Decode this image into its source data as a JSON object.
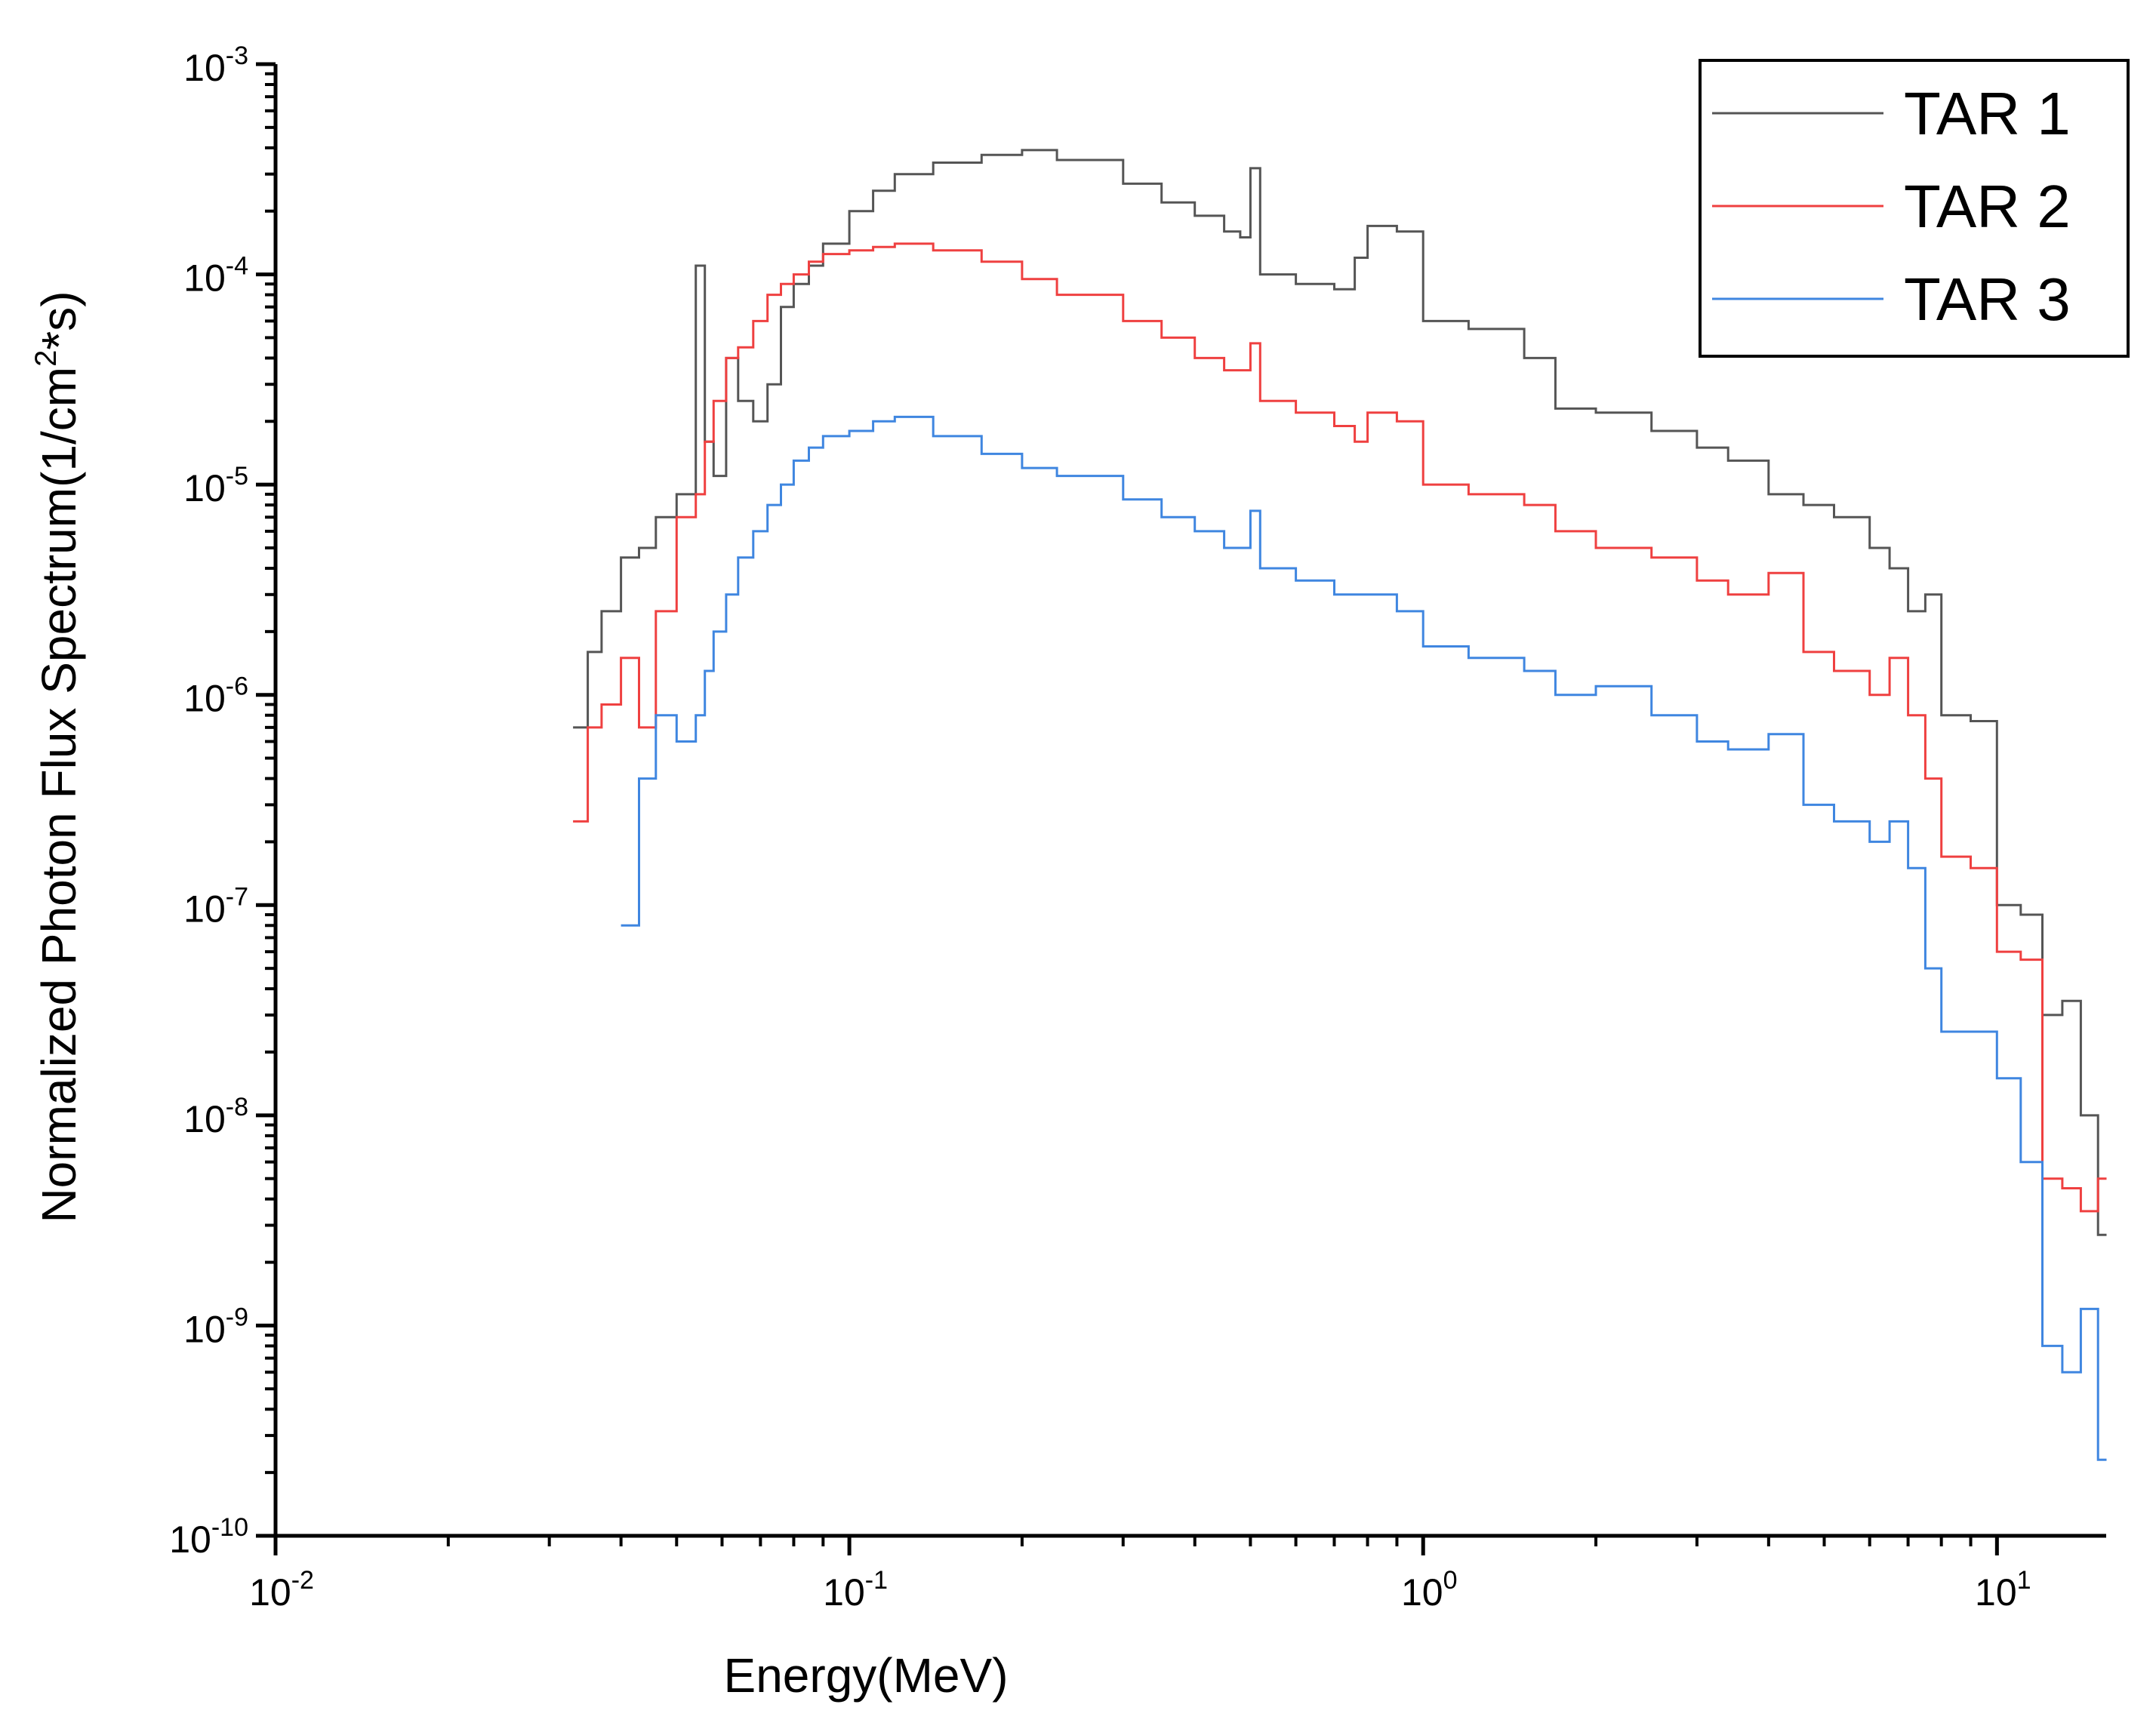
{
  "chart_data": {
    "type": "line",
    "style": "step",
    "title": "",
    "xlabel": "Energy(MeV)",
    "ylabel": "Normalized Photon Flux Spectrum(1/cm²*s)",
    "ylabel_parts": {
      "pre": "Normalized Photon Flux Spectrum(1/cm",
      "sup": "2",
      "post": "*s)"
    },
    "xscale": "log",
    "yscale": "log",
    "xlim": [
      0.01,
      15.5
    ],
    "ylim": [
      1e-10,
      0.001
    ],
    "grid": false,
    "legend_position": "top-right",
    "x_tick_labels": [
      {
        "value": 0.01,
        "base": "10",
        "exp": "-2"
      },
      {
        "value": 0.1,
        "base": "10",
        "exp": "-1"
      },
      {
        "value": 1,
        "base": "10",
        "exp": "0"
      },
      {
        "value": 10,
        "base": "10",
        "exp": "1"
      }
    ],
    "y_tick_labels": [
      {
        "value": 1e-10,
        "base": "10",
        "exp": "-10"
      },
      {
        "value": 1e-09,
        "base": "10",
        "exp": "-9"
      },
      {
        "value": 1e-08,
        "base": "10",
        "exp": "-8"
      },
      {
        "value": 1e-07,
        "base": "10",
        "exp": "-7"
      },
      {
        "value": 1e-06,
        "base": "10",
        "exp": "-6"
      },
      {
        "value": 1e-05,
        "base": "10",
        "exp": "-5"
      },
      {
        "value": 0.0001,
        "base": "10",
        "exp": "-4"
      },
      {
        "value": 0.001,
        "base": "10",
        "exp": "-3"
      }
    ],
    "series": [
      {
        "name": "TAR 1",
        "color": "#555555",
        "x": [
          0.033,
          0.035,
          0.037,
          0.04,
          0.043,
          0.046,
          0.05,
          0.054,
          0.056,
          0.058,
          0.061,
          0.064,
          0.068,
          0.072,
          0.076,
          0.08,
          0.085,
          0.09,
          0.1,
          0.11,
          0.12,
          0.14,
          0.17,
          0.2,
          0.23,
          0.3,
          0.35,
          0.4,
          0.45,
          0.48,
          0.5,
          0.52,
          0.6,
          0.7,
          0.76,
          0.8,
          0.9,
          1.0,
          1.2,
          1.5,
          1.7,
          2.0,
          2.5,
          3.0,
          3.4,
          4.0,
          4.6,
          5.2,
          6.0,
          6.5,
          7.0,
          7.5,
          8.0,
          9.0,
          10.0,
          11.0,
          12.0,
          13.0,
          14.0,
          15.0
        ],
        "values": [
          7e-07,
          1.6e-06,
          2.5e-06,
          4.5e-06,
          5e-06,
          7e-06,
          9e-06,
          0.00011,
          1.6e-05,
          1.1e-05,
          4e-05,
          2.5e-05,
          2e-05,
          3e-05,
          7e-05,
          9e-05,
          0.00011,
          0.00014,
          0.0002,
          0.00025,
          0.0003,
          0.00034,
          0.00037,
          0.00039,
          0.00035,
          0.00027,
          0.00022,
          0.00019,
          0.00016,
          0.00015,
          0.00032,
          0.0001,
          9e-05,
          8.5e-05,
          0.00012,
          0.00017,
          0.00016,
          6e-05,
          5.5e-05,
          4e-05,
          2.3e-05,
          2.2e-05,
          1.8e-05,
          1.5e-05,
          1.3e-05,
          9e-06,
          8e-06,
          7e-06,
          5e-06,
          4e-06,
          2.5e-06,
          3e-06,
          8e-07,
          7.5e-07,
          1e-07,
          9e-08,
          3e-08,
          3.5e-08,
          1e-08,
          2.7e-09
        ]
      },
      {
        "name": "TAR 2",
        "color": "#ef4040",
        "x": [
          0.033,
          0.035,
          0.037,
          0.04,
          0.043,
          0.046,
          0.05,
          0.054,
          0.056,
          0.058,
          0.061,
          0.064,
          0.068,
          0.072,
          0.076,
          0.08,
          0.085,
          0.09,
          0.1,
          0.11,
          0.12,
          0.14,
          0.17,
          0.2,
          0.23,
          0.3,
          0.35,
          0.4,
          0.45,
          0.48,
          0.5,
          0.52,
          0.6,
          0.7,
          0.76,
          0.8,
          0.9,
          1.0,
          1.2,
          1.5,
          1.7,
          2.0,
          2.5,
          3.0,
          3.4,
          4.0,
          4.6,
          5.2,
          6.0,
          6.5,
          7.0,
          7.5,
          8.0,
          9.0,
          10.0,
          11.0,
          12.0,
          13.0,
          14.0,
          15.0
        ],
        "values": [
          2.5e-07,
          7e-07,
          9e-07,
          1.5e-06,
          7e-07,
          2.5e-06,
          7e-06,
          9e-06,
          1.6e-05,
          2.5e-05,
          4e-05,
          4.5e-05,
          6e-05,
          8e-05,
          9e-05,
          0.0001,
          0.000115,
          0.000125,
          0.00013,
          0.000135,
          0.00014,
          0.00013,
          0.000115,
          9.5e-05,
          8e-05,
          6e-05,
          5e-05,
          4e-05,
          3.5e-05,
          3.5e-05,
          4.7e-05,
          2.5e-05,
          2.2e-05,
          1.9e-05,
          1.6e-05,
          2.2e-05,
          2e-05,
          1e-05,
          9e-06,
          8e-06,
          6e-06,
          5e-06,
          4.5e-06,
          3.5e-06,
          3e-06,
          3.8e-06,
          1.6e-06,
          1.3e-06,
          1e-06,
          1.5e-06,
          8e-07,
          4e-07,
          1.7e-07,
          1.5e-07,
          6e-08,
          5.5e-08,
          5e-09,
          4.5e-09,
          3.5e-09,
          5e-09
        ]
      },
      {
        "name": "TAR 3",
        "color": "#3f86e0",
        "x": [
          0.04,
          0.043,
          0.046,
          0.05,
          0.054,
          0.056,
          0.058,
          0.061,
          0.064,
          0.068,
          0.072,
          0.076,
          0.08,
          0.085,
          0.09,
          0.1,
          0.11,
          0.12,
          0.14,
          0.17,
          0.2,
          0.23,
          0.3,
          0.35,
          0.4,
          0.45,
          0.48,
          0.5,
          0.52,
          0.6,
          0.7,
          0.76,
          0.8,
          0.9,
          1.0,
          1.2,
          1.5,
          1.7,
          2.0,
          2.5,
          3.0,
          3.4,
          4.0,
          4.6,
          5.2,
          6.0,
          6.5,
          7.0,
          7.5,
          8.0,
          9.0,
          10.0,
          11.0,
          12.0,
          13.0,
          14.0,
          15.0
        ],
        "values": [
          8e-08,
          4e-07,
          8e-07,
          6e-07,
          8e-07,
          1.3e-06,
          2e-06,
          3e-06,
          4.5e-06,
          6e-06,
          8e-06,
          1e-05,
          1.3e-05,
          1.5e-05,
          1.7e-05,
          1.8e-05,
          2e-05,
          2.1e-05,
          1.7e-05,
          1.4e-05,
          1.2e-05,
          1.1e-05,
          8.5e-06,
          7e-06,
          6e-06,
          5e-06,
          5e-06,
          7.5e-06,
          4e-06,
          3.5e-06,
          3e-06,
          3e-06,
          3e-06,
          2.5e-06,
          1.7e-06,
          1.5e-06,
          1.3e-06,
          1e-06,
          1.1e-06,
          8e-07,
          6e-07,
          5.5e-07,
          6.5e-07,
          3e-07,
          2.5e-07,
          2e-07,
          2.5e-07,
          1.5e-07,
          5e-08,
          2.5e-08,
          2.5e-08,
          1.5e-08,
          6e-09,
          8e-10,
          6e-10,
          1.2e-09,
          2.3e-10
        ]
      }
    ]
  }
}
